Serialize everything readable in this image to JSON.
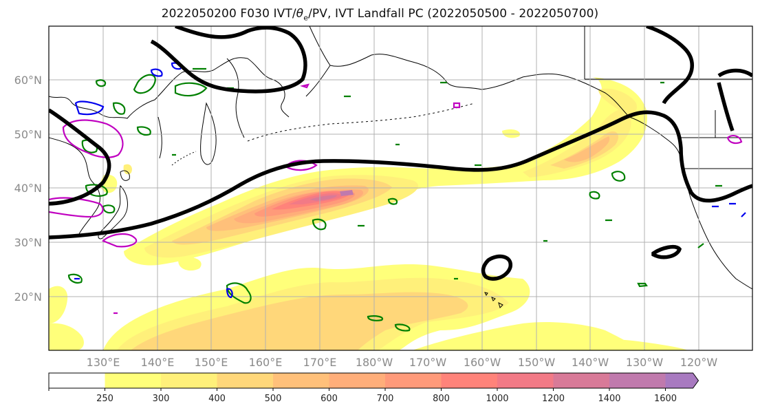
{
  "title_main": "2022050200 F030 IVT/",
  "title_theta": "θ",
  "title_sub": "e",
  "title_rest": "/PV, IVT Landfall PC (2022050500 - 2022050700)",
  "lat_labels": [
    "60°N",
    "50°N",
    "40°N",
    "30°N",
    "20°N"
  ],
  "lon_labels": [
    "130°E",
    "140°E",
    "150°E",
    "160°E",
    "170°E",
    "180°W",
    "170°W",
    "160°W",
    "150°W",
    "140°W",
    "130°W",
    "120°W"
  ],
  "colorbar": {
    "levels": [
      "250",
      "300",
      "400",
      "500",
      "600",
      "700",
      "800",
      "1000",
      "1200",
      "1400",
      "1600"
    ],
    "colors": [
      "#ffffff",
      "#ffff7a",
      "#fff07a",
      "#ffd77a",
      "#ffc07a",
      "#ffae7a",
      "#ff9a7a",
      "#ff837a",
      "#f27a86",
      "#d87a98",
      "#c07aad",
      "#a87ac0"
    ]
  },
  "contour_colors": {
    "ivt_landfall_pc": "#000000",
    "theta_e": "#008000",
    "pv_magenta": "#c000c0",
    "pv_blue": "#0000ee"
  }
}
